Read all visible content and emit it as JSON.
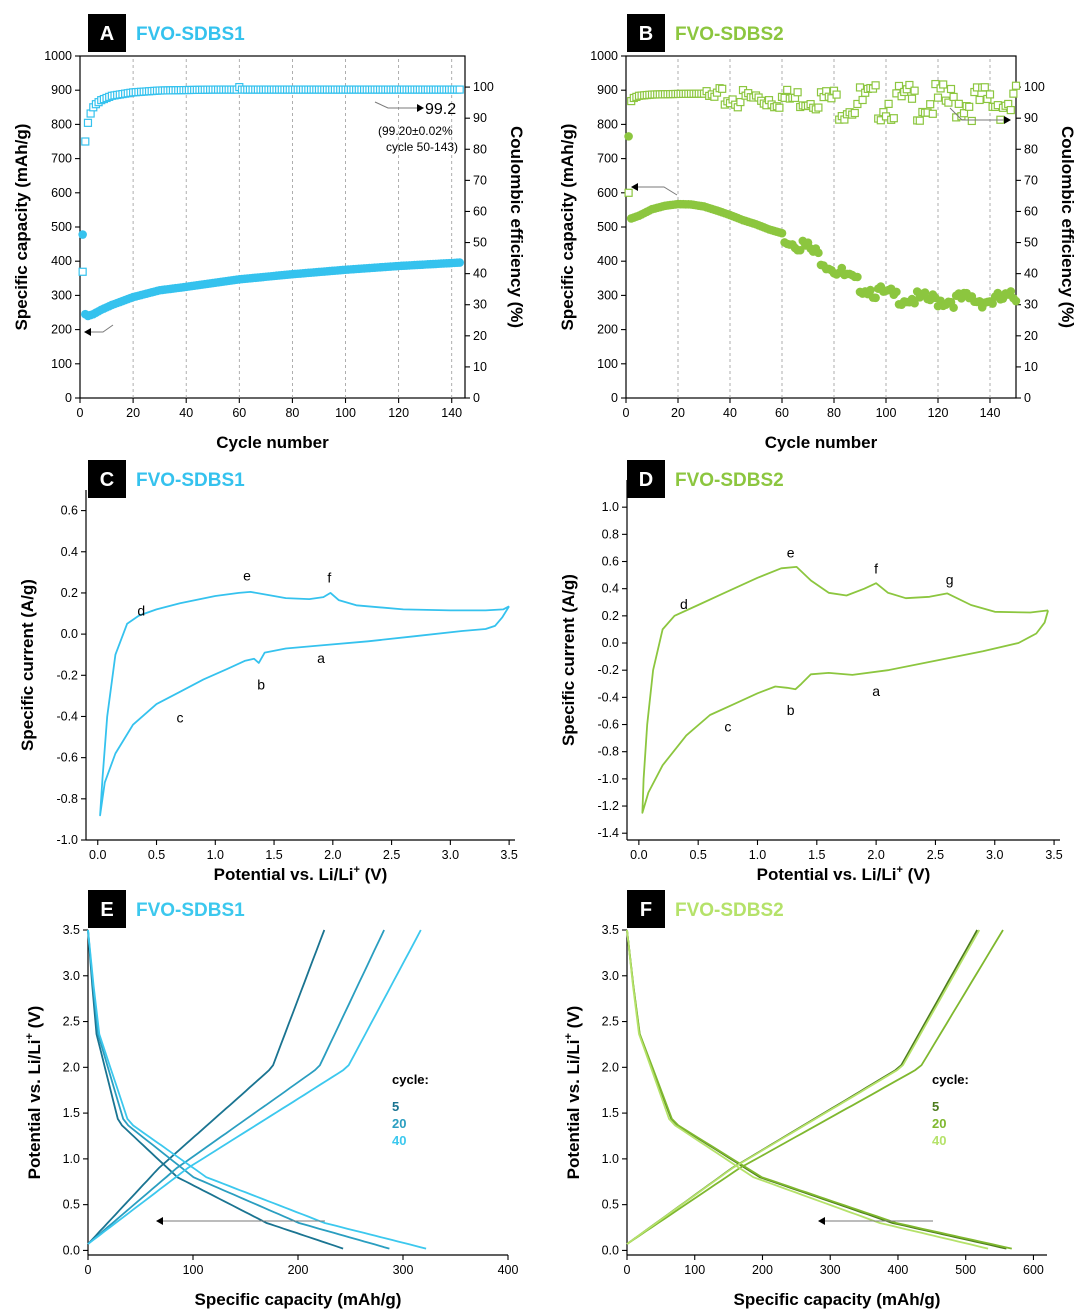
{
  "colors": {
    "blue": "#35C2EE",
    "green": "#8CC63F",
    "blue_5": "#1A7491",
    "blue_20": "#2A9EC0",
    "blue_40": "#3CC8EE",
    "green_5": "#4D7C1E",
    "green_20": "#7FB82F",
    "green_40": "#B5E26A"
  },
  "chart_data": [
    {
      "id": "A",
      "type": "scatter",
      "panel_letter": "A",
      "title": "FVO-SDBS1",
      "xlabel": "Cycle number",
      "ylabel": "Specific capacity (mAh/g)",
      "y2label": "Coulombic efficiency (%)",
      "xlim": [
        0,
        145
      ],
      "ylim": [
        0,
        1000
      ],
      "y2lim": [
        0,
        110
      ],
      "xticks": [
        "0",
        "20",
        "40",
        "60",
        "80",
        "100",
        "120",
        "140"
      ],
      "yticks": [
        "0",
        "100",
        "200",
        "300",
        "400",
        "500",
        "600",
        "700",
        "800",
        "900",
        "1000"
      ],
      "y2ticks": [
        "0",
        "10",
        "20",
        "30",
        "40",
        "50",
        "60",
        "70",
        "80",
        "90",
        "100"
      ],
      "grid": "vertical dashed",
      "series": [
        {
          "kind": "capacity",
          "marker": "filled-circle",
          "x_start": 1,
          "x_end": 143,
          "anchors": [
            [
              1,
              478
            ],
            [
              2,
              245
            ],
            [
              3,
              240
            ],
            [
              5,
              245
            ],
            [
              8,
              258
            ],
            [
              12,
              272
            ],
            [
              20,
              295
            ],
            [
              30,
              315
            ],
            [
              40,
              325
            ],
            [
              60,
              347
            ],
            [
              80,
              362
            ],
            [
              100,
              375
            ],
            [
              120,
              386
            ],
            [
              143,
              396
            ]
          ]
        },
        {
          "kind": "efficiency",
          "marker": "open-square",
          "x_start": 1,
          "x_end": 143,
          "anchors": [
            [
              1,
              40.6
            ],
            [
              2,
              82.5
            ],
            [
              3,
              88.5
            ],
            [
              4,
              91.5
            ],
            [
              5,
              93.5
            ],
            [
              6,
              94.5
            ],
            [
              8,
              95.8
            ],
            [
              12,
              97.2
            ],
            [
              20,
              98.3
            ],
            [
              30,
              98.9
            ],
            [
              50,
              99.2
            ],
            [
              143,
              99.2
            ]
          ]
        }
      ],
      "annotations": {
        "value": "99.2",
        "note_line1": "(99.20±0.02%",
        "note_line2": "cycle 50-143)"
      }
    },
    {
      "id": "B",
      "type": "scatter",
      "panel_letter": "B",
      "title": "FVO-SDBS2",
      "xlabel": "Cycle number",
      "ylabel": "Specific capacity (mAh/g)",
      "y2label": "Coulombic efficiency (%)",
      "xlim": [
        0,
        150
      ],
      "ylim": [
        0,
        1000
      ],
      "y2lim": [
        0,
        110
      ],
      "xticks": [
        "0",
        "20",
        "40",
        "60",
        "80",
        "100",
        "120",
        "140"
      ],
      "yticks": [
        "0",
        "100",
        "200",
        "300",
        "400",
        "500",
        "600",
        "700",
        "800",
        "900",
        "1000"
      ],
      "y2ticks": [
        "0",
        "10",
        "20",
        "30",
        "40",
        "50",
        "60",
        "70",
        "80",
        "90",
        "100"
      ],
      "grid": "vertical dashed",
      "series": [
        {
          "kind": "capacity",
          "marker": "filled-circle",
          "x_start": 1,
          "x_end": 150,
          "anchors": [
            [
              1,
              765
            ],
            [
              2,
              525
            ],
            [
              5,
              533
            ],
            [
              10,
              552
            ],
            [
              15,
              562
            ],
            [
              20,
              567
            ],
            [
              25,
              566
            ],
            [
              30,
              560
            ],
            [
              35,
              548
            ],
            [
              40,
              535
            ],
            [
              45,
              520
            ],
            [
              50,
              508
            ],
            [
              55,
              493
            ],
            [
              60,
              482
            ],
            [
              65,
              468
            ],
            [
              70,
              450
            ],
            [
              75,
              420
            ],
            [
              80,
              390
            ],
            [
              85,
              362
            ],
            [
              90,
              340
            ],
            [
              95,
              325
            ],
            [
              100,
              312
            ],
            [
              105,
              306
            ],
            [
              110,
              302
            ],
            [
              115,
              298
            ],
            [
              120,
              297
            ],
            [
              125,
              296
            ],
            [
              130,
              300
            ],
            [
              135,
              297
            ],
            [
              140,
              295
            ],
            [
              145,
              300
            ],
            [
              150,
              305
            ]
          ]
        },
        {
          "kind": "efficiency",
          "marker": "open-square",
          "x_start": 1,
          "x_end": 150,
          "anchors": [
            [
              1,
              66
            ],
            [
              2,
              95.5
            ],
            [
              3,
              96.5
            ],
            [
              5,
              97.2
            ],
            [
              10,
              97.6
            ],
            [
              20,
              97.8
            ],
            [
              40,
              98.0
            ],
            [
              60,
              98.0
            ],
            [
              80,
              98.0
            ],
            [
              100,
              98.0
            ],
            [
              120,
              98.0
            ],
            [
              150,
              98.0
            ]
          ]
        }
      ]
    },
    {
      "id": "C",
      "type": "line",
      "panel_letter": "C",
      "title": "FVO-SDBS1",
      "xlabel": "Potential vs. Li/Li",
      "xlabel_sup": "+",
      "xlabel_tail": " (V)",
      "ylabel": "Specific current (A/g)",
      "xlim": [
        -0.1,
        3.55
      ],
      "ylim": [
        -1.0,
        0.7
      ],
      "xticks": [
        "0.0",
        "0.5",
        "1.0",
        "1.5",
        "2.0",
        "2.5",
        "3.0",
        "3.5"
      ],
      "yticks": [
        "-1.0",
        "-0.8",
        "-0.6",
        "-0.4",
        "-0.2",
        "0.0",
        "0.2",
        "0.4",
        "0.6"
      ],
      "points": [
        [
          3.5,
          0.135
        ],
        [
          3.45,
          0.12
        ],
        [
          3.3,
          0.115
        ],
        [
          3.0,
          0.115
        ],
        [
          2.6,
          0.12
        ],
        [
          2.2,
          0.14
        ],
        [
          2.05,
          0.165
        ],
        [
          1.98,
          0.2
        ],
        [
          1.92,
          0.18
        ],
        [
          1.8,
          0.17
        ],
        [
          1.6,
          0.175
        ],
        [
          1.45,
          0.19
        ],
        [
          1.3,
          0.205
        ],
        [
          1.2,
          0.2
        ],
        [
          1.0,
          0.185
        ],
        [
          0.7,
          0.15
        ],
        [
          0.5,
          0.12
        ],
        [
          0.35,
          0.09
        ],
        [
          0.25,
          0.05
        ],
        [
          0.15,
          -0.1
        ],
        [
          0.08,
          -0.4
        ],
        [
          0.04,
          -0.7
        ],
        [
          0.02,
          -0.88
        ],
        [
          0.06,
          -0.72
        ],
        [
          0.15,
          -0.58
        ],
        [
          0.3,
          -0.44
        ],
        [
          0.5,
          -0.34
        ],
        [
          0.7,
          -0.28
        ],
        [
          0.9,
          -0.22
        ],
        [
          1.1,
          -0.17
        ],
        [
          1.25,
          -0.13
        ],
        [
          1.33,
          -0.12
        ],
        [
          1.37,
          -0.14
        ],
        [
          1.42,
          -0.09
        ],
        [
          1.6,
          -0.07
        ],
        [
          1.9,
          -0.055
        ],
        [
          2.3,
          -0.035
        ],
        [
          2.7,
          -0.01
        ],
        [
          3.1,
          0.015
        ],
        [
          3.3,
          0.025
        ],
        [
          3.38,
          0.04
        ],
        [
          3.44,
          0.08
        ],
        [
          3.5,
          0.135
        ]
      ],
      "labels": [
        {
          "text": "a",
          "x": 1.9,
          "y": -0.14
        },
        {
          "text": "b",
          "x": 1.39,
          "y": -0.27
        },
        {
          "text": "c",
          "x": 0.7,
          "y": -0.43
        },
        {
          "text": "d",
          "x": 0.37,
          "y": 0.09
        },
        {
          "text": "e",
          "x": 1.27,
          "y": 0.26
        },
        {
          "text": "f",
          "x": 1.97,
          "y": 0.25
        }
      ]
    },
    {
      "id": "D",
      "type": "line",
      "panel_letter": "D",
      "title": "FVO-SDBS2",
      "xlabel": "Potential vs. Li/Li",
      "xlabel_sup": "+",
      "xlabel_tail": " (V)",
      "ylabel": "Specific current (A/g)",
      "xlim": [
        -0.1,
        3.55
      ],
      "ylim": [
        -1.45,
        1.2
      ],
      "xticks": [
        "0.0",
        "0.5",
        "1.0",
        "1.5",
        "2.0",
        "2.5",
        "3.0",
        "3.5"
      ],
      "yticks": [
        "-1.4",
        "-1.2",
        "-1.0",
        "-0.8",
        "-0.6",
        "-0.4",
        "-0.2",
        "0.0",
        "0.2",
        "0.4",
        "0.6",
        "0.8",
        "1.0"
      ],
      "points": [
        [
          3.45,
          0.24
        ],
        [
          3.3,
          0.225
        ],
        [
          3.0,
          0.23
        ],
        [
          2.8,
          0.28
        ],
        [
          2.6,
          0.365
        ],
        [
          2.45,
          0.34
        ],
        [
          2.25,
          0.33
        ],
        [
          2.1,
          0.37
        ],
        [
          2.0,
          0.44
        ],
        [
          1.9,
          0.4
        ],
        [
          1.75,
          0.35
        ],
        [
          1.6,
          0.37
        ],
        [
          1.45,
          0.46
        ],
        [
          1.33,
          0.56
        ],
        [
          1.2,
          0.55
        ],
        [
          1.0,
          0.48
        ],
        [
          0.7,
          0.36
        ],
        [
          0.5,
          0.28
        ],
        [
          0.3,
          0.2
        ],
        [
          0.2,
          0.1
        ],
        [
          0.12,
          -0.2
        ],
        [
          0.07,
          -0.6
        ],
        [
          0.04,
          -1.0
        ],
        [
          0.03,
          -1.25
        ],
        [
          0.08,
          -1.1
        ],
        [
          0.2,
          -0.9
        ],
        [
          0.4,
          -0.68
        ],
        [
          0.6,
          -0.53
        ],
        [
          0.8,
          -0.45
        ],
        [
          1.0,
          -0.37
        ],
        [
          1.15,
          -0.32
        ],
        [
          1.25,
          -0.33
        ],
        [
          1.32,
          -0.34
        ],
        [
          1.37,
          -0.3
        ],
        [
          1.45,
          -0.23
        ],
        [
          1.6,
          -0.22
        ],
        [
          1.8,
          -0.235
        ],
        [
          2.1,
          -0.2
        ],
        [
          2.5,
          -0.13
        ],
        [
          2.9,
          -0.06
        ],
        [
          3.2,
          0.0
        ],
        [
          3.35,
          0.07
        ],
        [
          3.42,
          0.15
        ],
        [
          3.45,
          0.24
        ]
      ],
      "labels": [
        {
          "text": "a",
          "x": 2.0,
          "y": -0.39
        },
        {
          "text": "b",
          "x": 1.28,
          "y": -0.53
        },
        {
          "text": "c",
          "x": 0.75,
          "y": -0.65
        },
        {
          "text": "d",
          "x": 0.38,
          "y": 0.25
        },
        {
          "text": "e",
          "x": 1.28,
          "y": 0.63
        },
        {
          "text": "f",
          "x": 2.0,
          "y": 0.51
        },
        {
          "text": "g",
          "x": 2.62,
          "y": 0.43
        }
      ]
    },
    {
      "id": "E",
      "type": "line",
      "panel_letter": "E",
      "title": "FVO-SDBS1",
      "xlabel": "Specific capacity (mAh/g)",
      "ylabel": "Potential vs. Li/Li",
      "ylabel_sup": "+",
      "ylabel_tail": " (V)",
      "xlim": [
        0,
        400
      ],
      "ylim": [
        -0.05,
        3.5
      ],
      "xticks": [
        "0",
        "100",
        "200",
        "300",
        "400"
      ],
      "yticks": [
        "0.0",
        "0.5",
        "1.0",
        "1.5",
        "2.0",
        "2.5",
        "3.0",
        "3.5"
      ],
      "legend_title": "cycle:",
      "legend_position": "right",
      "series": [
        {
          "name": "5",
          "discharge_end": 243,
          "charge_end": 225
        },
        {
          "name": "20",
          "discharge_end": 287,
          "charge_end": 282
        },
        {
          "name": "40",
          "discharge_end": 322,
          "charge_end": 317
        }
      ]
    },
    {
      "id": "F",
      "type": "line",
      "panel_letter": "F",
      "title": "FVO-SDBS2",
      "xlabel": "Specific capacity (mAh/g)",
      "ylabel": "Potential vs. Li/Li",
      "ylabel_sup": "+",
      "ylabel_tail": " (V)",
      "xlim": [
        0,
        620
      ],
      "ylim": [
        -0.05,
        3.5
      ],
      "xticks": [
        "0",
        "100",
        "200",
        "300",
        "400",
        "500",
        "600"
      ],
      "yticks": [
        "0.0",
        "0.5",
        "1.0",
        "1.5",
        "2.0",
        "2.5",
        "3.0",
        "3.5"
      ],
      "legend_title": "cycle:",
      "legend_position": "right",
      "series": [
        {
          "name": "5",
          "discharge_end": 560,
          "charge_end": 517
        },
        {
          "name": "20",
          "discharge_end": 568,
          "charge_end": 555
        },
        {
          "name": "40",
          "discharge_end": 533,
          "charge_end": 520
        }
      ]
    }
  ]
}
